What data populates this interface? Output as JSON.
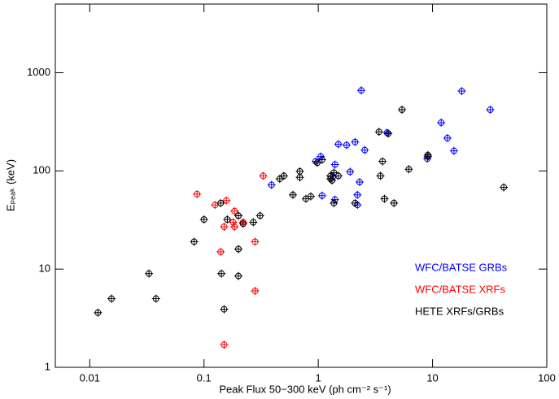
{
  "chart_data": {
    "type": "scatter",
    "xlabel": "Peak Flux 50−300 keV (ph cm⁻² s⁻¹)",
    "ylabel": "Eₚₑₐₖ (keV)",
    "xscale": "log",
    "yscale": "log",
    "xlim": [
      0.005,
      100
    ],
    "ylim": [
      1,
      5000
    ],
    "xticks": [
      0.01,
      0.1,
      1,
      10,
      100
    ],
    "yticks": [
      1,
      10,
      100,
      1000
    ],
    "legend": "lower right",
    "series": [
      {
        "name": "WFC/BATSE GRBs",
        "color": "#0000ff",
        "x": [
          2.38,
          0.39,
          1.05,
          0.95,
          1.5,
          1.77,
          2.1,
          2.55,
          1.9,
          1.4,
          1.35,
          1.4,
          2.2,
          2.2,
          2.3,
          1.08,
          4.0,
          18,
          32,
          11.9,
          13.5,
          15.4,
          9
        ],
        "values": [
          660,
          72,
          140,
          125,
          187,
          183,
          197,
          163,
          98,
          116,
          88,
          51,
          45,
          57,
          77,
          56,
          245,
          650,
          420,
          310,
          216,
          160,
          133
        ]
      },
      {
        "name": "WFC/BATSE XRFs",
        "color": "#ff0000",
        "x": [
          0.087,
          0.157,
          0.125,
          0.185,
          0.2,
          0.22,
          0.18,
          0.185,
          0.15,
          0.28,
          0.14,
          0.28,
          0.15,
          0.33
        ],
        "values": [
          58,
          50,
          45,
          39,
          35,
          30,
          30,
          27,
          27,
          19,
          15,
          6,
          1.7,
          89
        ]
      },
      {
        "name": "HETE XRFs/GRBs",
        "color": "#000000",
        "x": [
          0.0118,
          0.0155,
          0.038,
          0.033,
          0.142,
          0.15,
          0.2,
          0.1,
          0.082,
          0.14,
          0.16,
          0.2,
          0.22,
          0.27,
          0.2,
          0.31,
          0.69,
          0.5,
          0.46,
          0.6,
          0.69,
          0.78,
          0.86,
          0.98,
          1.08,
          1.28,
          1.28,
          1.37,
          1.5,
          1.32,
          2.1,
          1.37,
          3.4,
          4.1,
          3.65,
          3.5,
          3.8,
          4.6,
          5.4,
          6.2,
          9.1,
          9.1,
          42
        ],
        "values": [
          3.6,
          5,
          5,
          9,
          9,
          3.9,
          8.5,
          32,
          19,
          47,
          32,
          35,
          29,
          30,
          16,
          35,
          86,
          89,
          83,
          57,
          99,
          52,
          55,
          121,
          130,
          89,
          83,
          96,
          89,
          80,
          47,
          47,
          250,
          240,
          125,
          89,
          52,
          47,
          420,
          104,
          140,
          145,
          68
        ]
      }
    ]
  }
}
